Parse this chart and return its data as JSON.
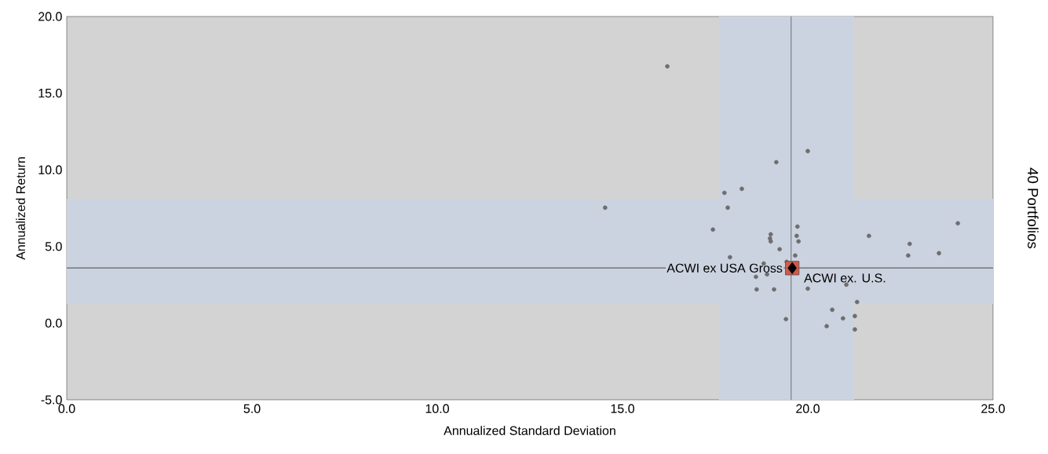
{
  "chart_data": {
    "type": "scatter",
    "xlabel": "Annualized Standard Deviation",
    "ylabel": "Annualized Return",
    "y2label": "40 Portfolios",
    "xlim": [
      0,
      25
    ],
    "ylim": [
      -5,
      20
    ],
    "xticks": [
      {
        "value": 0,
        "label": "0.0"
      },
      {
        "value": 5,
        "label": "5.0"
      },
      {
        "value": 10,
        "label": "10.0"
      },
      {
        "value": 15,
        "label": "15.0"
      },
      {
        "value": 20,
        "label": "20.0"
      },
      {
        "value": 25,
        "label": "25.0"
      }
    ],
    "yticks": [
      {
        "value": -5,
        "label": "-5.0"
      },
      {
        "value": 0,
        "label": "0.0"
      },
      {
        "value": 5,
        "label": "5.0"
      },
      {
        "value": 10,
        "label": "10.0"
      },
      {
        "value": 15,
        "label": "15.0"
      },
      {
        "value": 20,
        "label": "20.0"
      }
    ],
    "grid": false,
    "bands": [
      {
        "axis": "x",
        "from": 17.6,
        "to": 21.25,
        "color": "#ccd3e0"
      },
      {
        "axis": "y",
        "from": 1.25,
        "to": 8.1,
        "color": "#ccd3e0"
      }
    ],
    "ref_lines": [
      {
        "axis": "x",
        "value": 19.55,
        "color": "#7a7f88"
      },
      {
        "axis": "y",
        "value": 3.6,
        "color": "#3c3c3c"
      }
    ],
    "series": [
      {
        "color": "#6e6e6e",
        "marker": "circle",
        "x": [
          16.21,
          14.53,
          20.0,
          19.15,
          18.22,
          17.75,
          17.84,
          17.44,
          19.72,
          19.7,
          21.65,
          24.05,
          22.75,
          22.71,
          23.54,
          19.0,
          18.98,
          19.0,
          19.75,
          19.66,
          17.9,
          19.24,
          18.81,
          18.9,
          18.6,
          19.43,
          18.62,
          19.09,
          20.0,
          21.04,
          21.33,
          20.66,
          21.27,
          20.95,
          19.41,
          20.51,
          21.27
        ],
        "values": [
          16.75,
          7.53,
          11.22,
          10.5,
          8.76,
          8.5,
          7.53,
          6.1,
          6.3,
          5.69,
          5.69,
          6.51,
          5.17,
          4.41,
          4.56,
          5.79,
          5.53,
          5.33,
          5.33,
          4.41,
          4.3,
          4.82,
          3.89,
          3.18,
          3.02,
          4.0,
          2.2,
          2.2,
          2.25,
          2.51,
          1.38,
          0.87,
          0.46,
          0.31,
          0.26,
          -0.2,
          -0.41
        ]
      },
      {
        "name": "ACWI ex. U.S.",
        "color": "#d05a48",
        "marker": "square",
        "x": [
          19.58
        ],
        "values": [
          3.59
        ]
      },
      {
        "name": "ACWI ex USA Gross",
        "color": "#000000",
        "marker": "diamond",
        "x": [
          19.58
        ],
        "values": [
          3.59
        ]
      }
    ]
  }
}
